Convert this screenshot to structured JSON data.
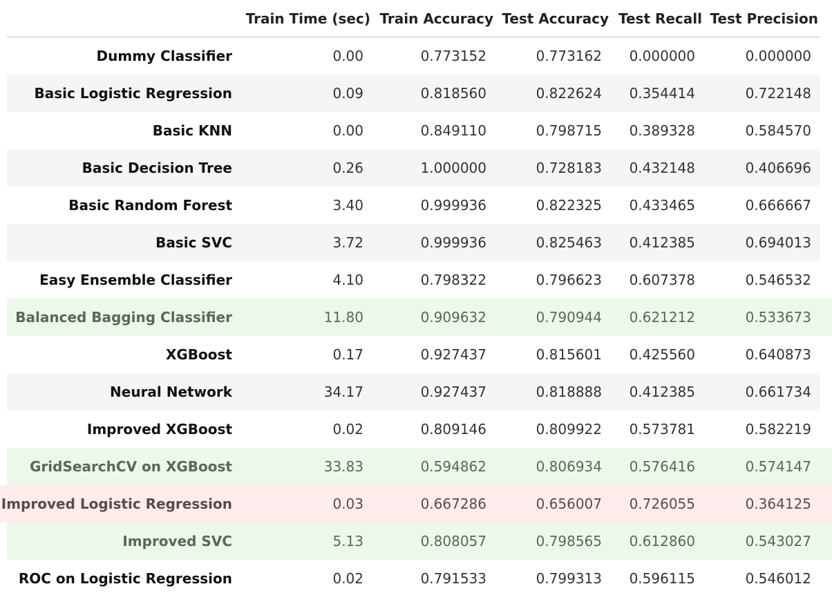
{
  "colors": {
    "stripe": "#f5f5f5",
    "plain": "#ffffff",
    "highlight_green": "#ecf8ea",
    "highlight_red": "#fdeceb"
  },
  "table": {
    "columns": [
      "Train Time (sec)",
      "Train Accuracy",
      "Test Accuracy",
      "Test Recall",
      "Test Precision"
    ],
    "rows": [
      {
        "model": "Dummy Classifier",
        "values": [
          "0.00",
          "0.773152",
          "0.773162",
          "0.000000",
          "0.000000"
        ],
        "highlight": "none"
      },
      {
        "model": "Basic Logistic Regression",
        "values": [
          "0.09",
          "0.818560",
          "0.822624",
          "0.354414",
          "0.722148"
        ],
        "highlight": "none"
      },
      {
        "model": "Basic KNN",
        "values": [
          "0.00",
          "0.849110",
          "0.798715",
          "0.389328",
          "0.584570"
        ],
        "highlight": "none"
      },
      {
        "model": "Basic Decision Tree",
        "values": [
          "0.26",
          "1.000000",
          "0.728183",
          "0.432148",
          "0.406696"
        ],
        "highlight": "none"
      },
      {
        "model": "Basic Random Forest",
        "values": [
          "3.40",
          "0.999936",
          "0.822325",
          "0.433465",
          "0.666667"
        ],
        "highlight": "none"
      },
      {
        "model": "Basic SVC",
        "values": [
          "3.72",
          "0.999936",
          "0.825463",
          "0.412385",
          "0.694013"
        ],
        "highlight": "none"
      },
      {
        "model": "Easy Ensemble Classifier",
        "values": [
          "4.10",
          "0.798322",
          "0.796623",
          "0.607378",
          "0.546532"
        ],
        "highlight": "none"
      },
      {
        "model": "Balanced Bagging Classifier",
        "values": [
          "11.80",
          "0.909632",
          "0.790944",
          "0.621212",
          "0.533673"
        ],
        "highlight": "green"
      },
      {
        "model": "XGBoost",
        "values": [
          "0.17",
          "0.927437",
          "0.815601",
          "0.425560",
          "0.640873"
        ],
        "highlight": "none"
      },
      {
        "model": "Neural Network",
        "values": [
          "34.17",
          "0.927437",
          "0.818888",
          "0.412385",
          "0.661734"
        ],
        "highlight": "none"
      },
      {
        "model": "Improved XGBoost",
        "values": [
          "0.02",
          "0.809146",
          "0.809922",
          "0.573781",
          "0.582219"
        ],
        "highlight": "none"
      },
      {
        "model": "GridSearchCV on XGBoost",
        "values": [
          "33.83",
          "0.594862",
          "0.806934",
          "0.576416",
          "0.574147"
        ],
        "highlight": "green"
      },
      {
        "model": "Improved Logistic Regression",
        "values": [
          "0.03",
          "0.667286",
          "0.656007",
          "0.726055",
          "0.364125"
        ],
        "highlight": "red"
      },
      {
        "model": "Improved SVC",
        "values": [
          "5.13",
          "0.808057",
          "0.798565",
          "0.612860",
          "0.543027"
        ],
        "highlight": "green"
      },
      {
        "model": "ROC on Logistic Regression",
        "values": [
          "0.02",
          "0.791533",
          "0.799313",
          "0.596115",
          "0.546012"
        ],
        "highlight": "none"
      }
    ]
  }
}
